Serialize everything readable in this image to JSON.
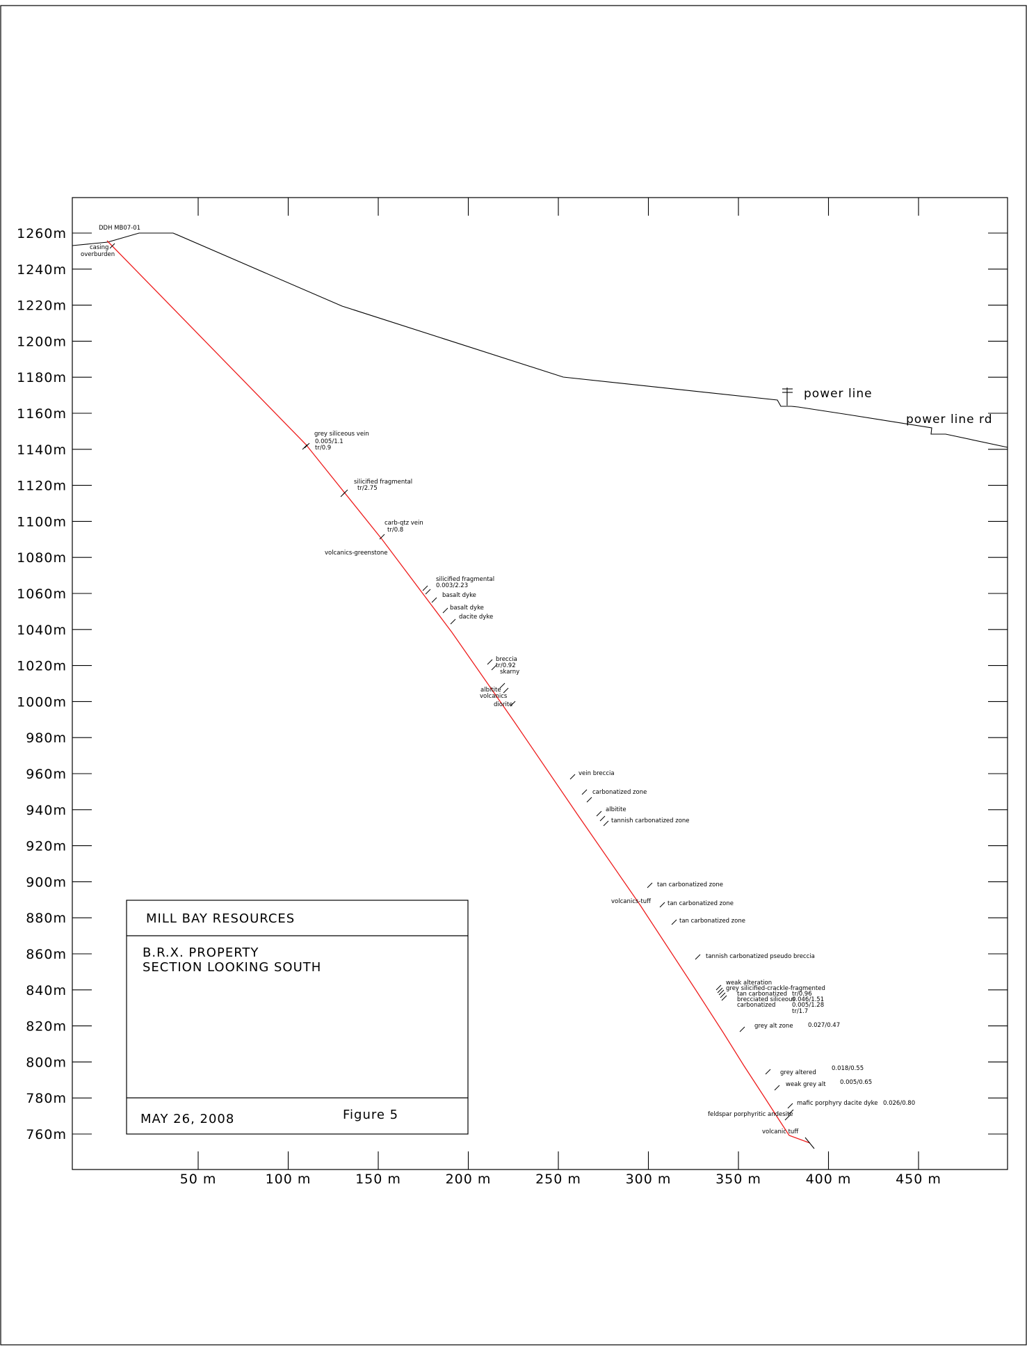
{
  "drillhole": "DDH MB07-01",
  "y_axis": {
    "tick_labels": [
      "1260m",
      "1240m",
      "1220m",
      "1200m",
      "1180m",
      "1160m",
      "1140m",
      "1120m",
      "1100m",
      "1080m",
      "1060m",
      "1040m",
      "1020m",
      "1000m",
      "980m",
      "960m",
      "940m",
      "920m",
      "900m",
      "880m",
      "860m",
      "840m",
      "820m",
      "800m",
      "780m",
      "760m"
    ]
  },
  "x_axis": {
    "tick_labels": [
      "50  m",
      "100  m",
      "150  m",
      "200  m",
      "250  m",
      "300  m",
      "350  m",
      "400  m",
      "450  m"
    ]
  },
  "surface_labels": {
    "power_line": "power  line",
    "power_line_rd": "power  line  rd"
  },
  "annotations": [
    {
      "id": "casing",
      "text": "casing"
    },
    {
      "id": "overburden",
      "text": "overburden"
    },
    {
      "id": "grey-siliceous-vein",
      "text": "grey  siliceous  vein"
    },
    {
      "id": "assay-1",
      "text": "0.005/1.1"
    },
    {
      "id": "assay-2",
      "text": "tr/0.9"
    },
    {
      "id": "silicified-fragmental-1",
      "text": "silicified  fragmental"
    },
    {
      "id": "assay-3",
      "text": "tr/2.75"
    },
    {
      "id": "carb-qtz-vein",
      "text": "carb-qtz  vein"
    },
    {
      "id": "assay-4",
      "text": "tr/0.8"
    },
    {
      "id": "volcanics-greenstone",
      "text": "volcanics-greenstone"
    },
    {
      "id": "silicified-fragmental-2",
      "text": "silicified  fragmental"
    },
    {
      "id": "assay-5",
      "text": "0.003/2.23"
    },
    {
      "id": "basalt-dyke-1",
      "text": "basalt  dyke"
    },
    {
      "id": "basalt-dyke-2",
      "text": "basalt  dyke"
    },
    {
      "id": "dacite-dyke",
      "text": "dacite  dyke"
    },
    {
      "id": "breccia",
      "text": "breccia"
    },
    {
      "id": "assay-6",
      "text": "tr/0.92"
    },
    {
      "id": "skarny",
      "text": "skarny"
    },
    {
      "id": "albitite-1",
      "text": "albitite"
    },
    {
      "id": "volcanics",
      "text": "volcanics"
    },
    {
      "id": "diorite",
      "text": "diorite"
    },
    {
      "id": "vein-breccia",
      "text": "vein  breccia"
    },
    {
      "id": "carbonatized-zone",
      "text": "carbonatized  zone"
    },
    {
      "id": "albitite-2",
      "text": "albitite"
    },
    {
      "id": "tannish-carbonatized-zone",
      "text": "tannish  carbonatized  zone"
    },
    {
      "id": "tan-carbonatized-zone-1",
      "text": "tan  carbonatized  zone"
    },
    {
      "id": "volcanics-tuff",
      "text": "volcanics-tuff"
    },
    {
      "id": "tan-carbonatized-zone-2",
      "text": "tan  carbonatized  zone"
    },
    {
      "id": "tan-carbonatized-zone-3",
      "text": "tan  carbonatized  zone"
    },
    {
      "id": "tannish-carbonatized-pseudo-breccia",
      "text": "tannish  carbonatized  pseudo  breccia"
    },
    {
      "id": "weak-alteration",
      "text": "weak  alteration"
    },
    {
      "id": "grey-silicified-crackle-fragmented",
      "text": "grey  silicified-crackle-fragmented"
    },
    {
      "id": "tan-carbonatized",
      "text": "tan  carbonatized"
    },
    {
      "id": "assay-7",
      "text": "tr/0.96"
    },
    {
      "id": "brecciated-siliceous",
      "text": "brecciated  siliceous"
    },
    {
      "id": "assay-8",
      "text": "0.046/1.51"
    },
    {
      "id": "carbonatized",
      "text": "carbonatized"
    },
    {
      "id": "assay-9",
      "text": "0.005/1.28"
    },
    {
      "id": "assay-10",
      "text": "tr/1.7"
    },
    {
      "id": "grey-alt-zone",
      "text": "grey  alt  zone"
    },
    {
      "id": "assay-11",
      "text": "0.027/0.47"
    },
    {
      "id": "assay-12",
      "text": "0.018/0.55"
    },
    {
      "id": "grey-altered",
      "text": "grey  altered"
    },
    {
      "id": "weak-grey-alt",
      "text": "weak  grey  alt"
    },
    {
      "id": "assay-13",
      "text": "0.005/0.65"
    },
    {
      "id": "mafic-porphyry-dacite-dyke",
      "text": "mafic  porphyry  dacite  dyke"
    },
    {
      "id": "assay-14",
      "text": "0.026/0.80"
    },
    {
      "id": "feldspar-porphyritic-andesite",
      "text": "feldspar  porphyritic  andesite"
    },
    {
      "id": "volcanic-tuff",
      "text": "volcanic  tuff"
    }
  ],
  "title_block": {
    "company": "MILL  BAY  RESOURCES",
    "property": "B.R.X.  PROPERTY",
    "section": "SECTION  LOOKING  SOUTH",
    "date": "MAY  26,  2008",
    "figure": "Figure  5"
  },
  "colors": {
    "drill_trace": "#ee1c1c",
    "line": "#000000"
  }
}
